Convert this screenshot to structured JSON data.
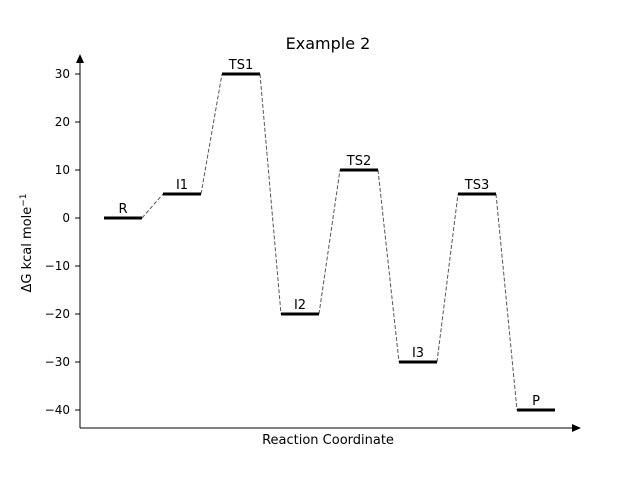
{
  "chart_data": {
    "type": "line",
    "title": "Example 2",
    "xlabel": "Reaction Coordinate",
    "ylabel": {
      "main": "ΔG kcal mole",
      "superscript": "−1"
    },
    "ylim": [
      -43.5,
      33
    ],
    "yticks": [
      30,
      20,
      10,
      0,
      -10,
      -20,
      -30,
      -40
    ],
    "ytick_labels": [
      "30",
      "20",
      "10",
      "0",
      "−10",
      "−20",
      "−30",
      "−40"
    ],
    "grid": false,
    "levels": [
      {
        "label": "R",
        "position": 1,
        "energy": 0
      },
      {
        "label": "I1",
        "position": 2,
        "energy": 5
      },
      {
        "label": "TS1",
        "position": 3,
        "energy": 30
      },
      {
        "label": "I2",
        "position": 4,
        "energy": -20
      },
      {
        "label": "TS2",
        "position": 5,
        "energy": 10
      },
      {
        "label": "I3",
        "position": 6,
        "energy": -30
      },
      {
        "label": "TS3",
        "position": 7,
        "energy": 5
      },
      {
        "label": "P",
        "position": 8,
        "energy": -40
      }
    ],
    "level_color": "#000000",
    "connector_color": "#555555",
    "connector_style": "dashed"
  }
}
